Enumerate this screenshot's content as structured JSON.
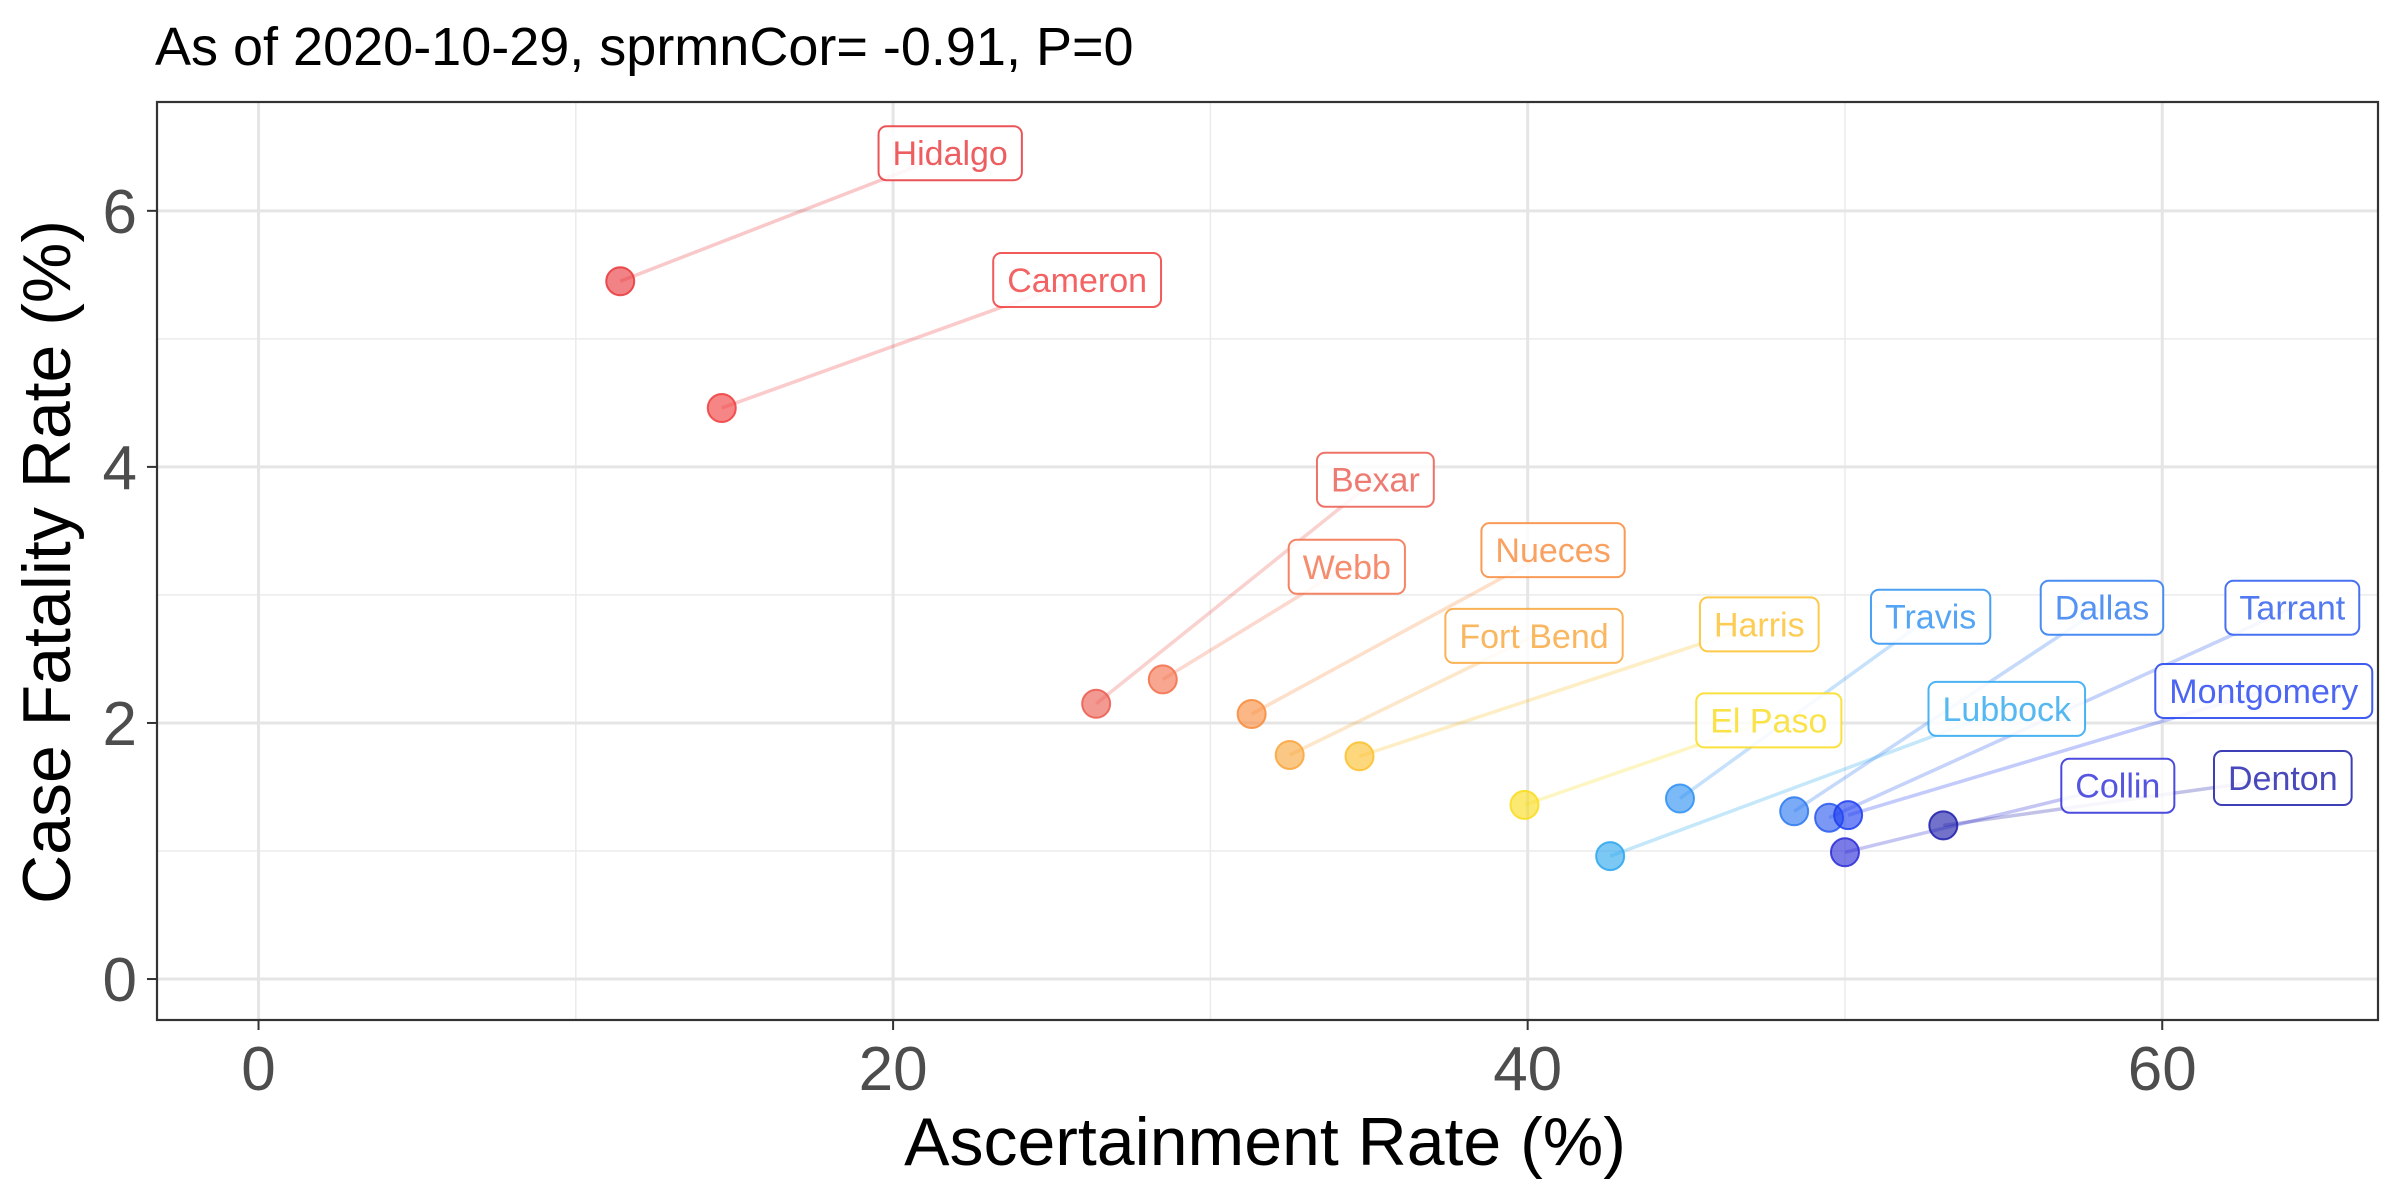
{
  "chart_data": {
    "type": "scatter",
    "title": "As of 2020-10-29, sprmnCor= -0.91, P=0",
    "xlabel": "Ascertainment Rate (%)",
    "ylabel": "Case Fatality Rate (%)",
    "xlim": [
      -3.2,
      66.8
    ],
    "ylim": [
      -0.32,
      6.85
    ],
    "x_ticks": [
      0,
      20,
      40,
      60
    ],
    "y_ticks": [
      0,
      2,
      4,
      6
    ],
    "grid": true,
    "legend": "none",
    "points": [
      {
        "label": "Hidalgo",
        "x": 11.4,
        "y": 5.45,
        "color": "#e8363a",
        "label_x": 21.8,
        "label_y": 6.45
      },
      {
        "label": "Cameron",
        "x": 14.6,
        "y": 4.46,
        "color": "#f03c3c",
        "label_x": 25.8,
        "label_y": 5.46
      },
      {
        "label": "Bexar",
        "x": 26.4,
        "y": 2.15,
        "color": "#ea5a4f",
        "label_x": 35.2,
        "label_y": 3.9
      },
      {
        "label": "Webb",
        "x": 28.5,
        "y": 2.34,
        "color": "#f36f4a",
        "label_x": 34.3,
        "label_y": 3.22
      },
      {
        "label": "Nueces",
        "x": 31.3,
        "y": 2.07,
        "color": "#f88a3a",
        "label_x": 40.8,
        "label_y": 3.35
      },
      {
        "label": "Fort Bend",
        "x": 32.5,
        "y": 1.75,
        "color": "#f9a53a",
        "label_x": 40.2,
        "label_y": 2.68
      },
      {
        "label": "Harris",
        "x": 34.7,
        "y": 1.74,
        "color": "#fbbf2a",
        "label_x": 47.3,
        "label_y": 2.77
      },
      {
        "label": "El Paso",
        "x": 39.9,
        "y": 1.36,
        "color": "#f9dc1c",
        "label_x": 47.6,
        "label_y": 2.02
      },
      {
        "label": "Lubbock",
        "x": 42.6,
        "y": 0.96,
        "color": "#2aa6ee",
        "label_x": 55.1,
        "label_y": 2.11
      },
      {
        "label": "Travis",
        "x": 44.8,
        "y": 1.41,
        "color": "#2b8ff2",
        "label_x": 52.7,
        "label_y": 2.83
      },
      {
        "label": "Dallas",
        "x": 48.4,
        "y": 1.31,
        "color": "#2a78f0",
        "label_x": 58.1,
        "label_y": 2.9
      },
      {
        "label": "Tarrant",
        "x": 49.5,
        "y": 1.26,
        "color": "#2858ee",
        "label_x": 64.1,
        "label_y": 2.9
      },
      {
        "label": "Montgomery",
        "x": 50.1,
        "y": 1.28,
        "color": "#1f3ef0",
        "label_x": 63.2,
        "label_y": 2.25
      },
      {
        "label": "Collin",
        "x": 50.0,
        "y": 0.99,
        "color": "#2a2ad8",
        "label_x": 58.6,
        "label_y": 1.51
      },
      {
        "label": "Denton",
        "x": 53.1,
        "y": 1.2,
        "color": "#1c1caa",
        "label_x": 63.8,
        "label_y": 1.57
      }
    ]
  }
}
